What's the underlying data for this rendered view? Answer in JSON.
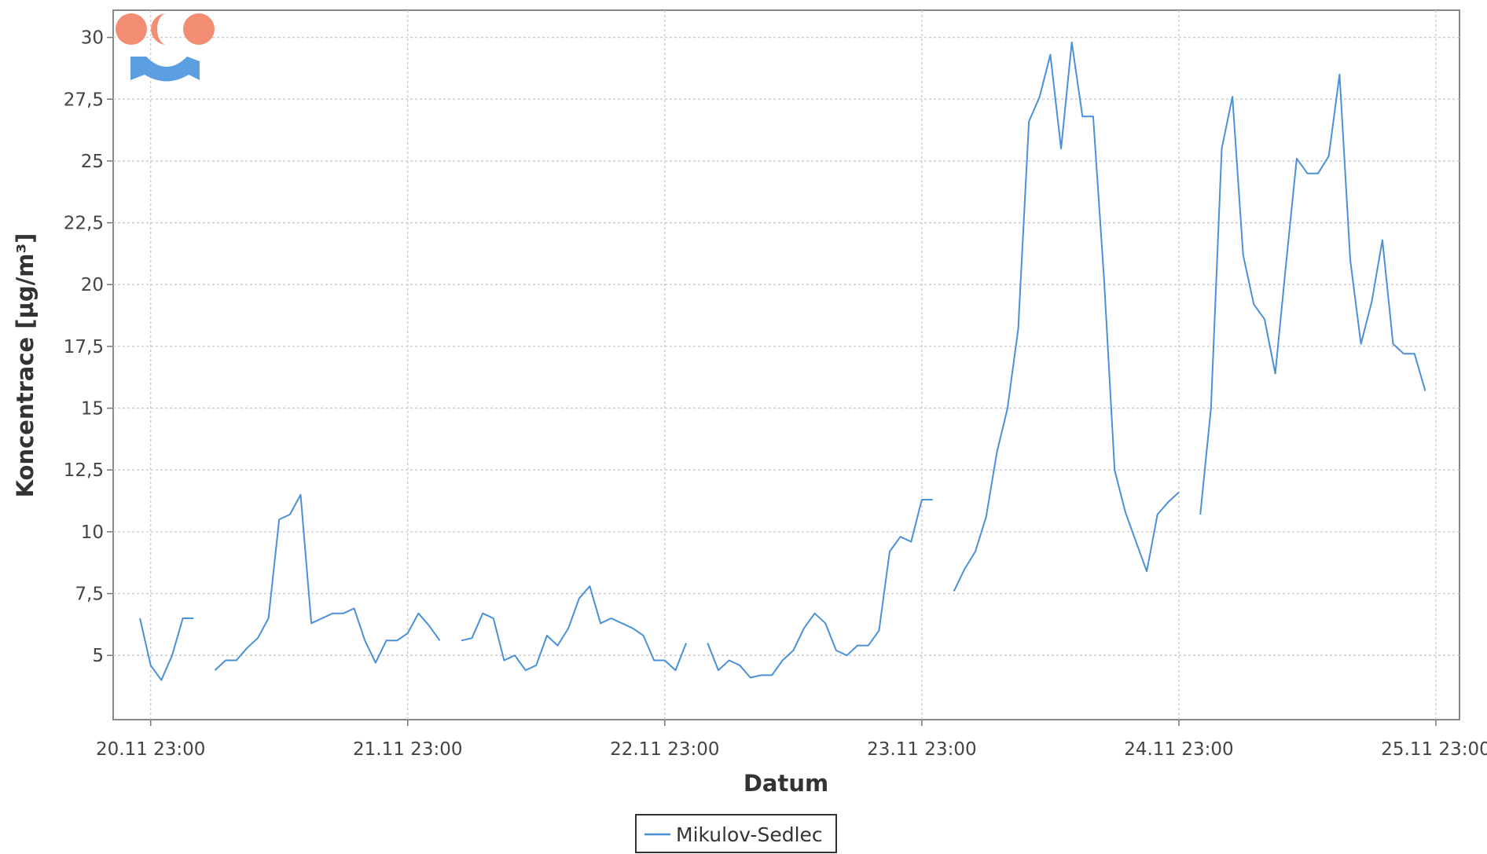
{
  "chart_data": {
    "type": "line",
    "title": "",
    "xlabel": "Datum",
    "ylabel": "Koncentrace [µg/m³]",
    "x_unit": "hours",
    "x_ticks": [
      {
        "label": "20.11 23:00",
        "h": 23
      },
      {
        "label": "21.11 23:00",
        "h": 47
      },
      {
        "label": "22.11 23:00",
        "h": 71
      },
      {
        "label": "23.11 23:00",
        "h": 95
      },
      {
        "label": "24.11 23:00",
        "h": 119
      },
      {
        "label": "25.11 23:00",
        "h": 143
      }
    ],
    "xlim": [
      19.5,
      145.2
    ],
    "ylim": [
      2.4,
      31.1
    ],
    "y_ticks": [
      {
        "label": "5",
        "v": 5
      },
      {
        "label": "7,5",
        "v": 7.5
      },
      {
        "label": "10",
        "v": 10
      },
      {
        "label": "12,5",
        "v": 12.5
      },
      {
        "label": "15",
        "v": 15
      },
      {
        "label": "17,5",
        "v": 17.5
      },
      {
        "label": "20",
        "v": 20
      },
      {
        "label": "22,5",
        "v": 22.5
      },
      {
        "label": "25",
        "v": 25
      },
      {
        "label": "27,5",
        "v": 27.5
      },
      {
        "label": "30",
        "v": 30
      }
    ],
    "grid": true,
    "legend_position": "bottom-center",
    "series": [
      {
        "name": "Mikulov-Sedlec",
        "color": "#4a90d9",
        "segments": [
          [
            [
              22,
              6.5
            ],
            [
              23,
              4.6
            ],
            [
              24,
              4.0
            ],
            [
              25,
              5.0
            ],
            [
              26,
              6.5
            ],
            [
              27,
              6.5
            ]
          ],
          [
            [
              29,
              4.4
            ],
            [
              30,
              4.8
            ],
            [
              31,
              4.8
            ],
            [
              32,
              5.3
            ],
            [
              33,
              5.7
            ],
            [
              34,
              6.5
            ],
            [
              35,
              10.5
            ],
            [
              36,
              10.7
            ],
            [
              37,
              11.5
            ],
            [
              38,
              6.3
            ],
            [
              39,
              6.5
            ],
            [
              40,
              6.7
            ],
            [
              41,
              6.7
            ],
            [
              42,
              6.9
            ],
            [
              43,
              5.6
            ],
            [
              44,
              4.7
            ],
            [
              45,
              5.6
            ],
            [
              46,
              5.6
            ],
            [
              47,
              5.9
            ],
            [
              48,
              6.7
            ],
            [
              49,
              6.2
            ],
            [
              50,
              5.6
            ]
          ],
          [
            [
              52,
              5.6
            ],
            [
              53,
              5.7
            ],
            [
              54,
              6.7
            ],
            [
              55,
              6.5
            ],
            [
              56,
              4.8
            ],
            [
              57,
              5.0
            ],
            [
              58,
              4.4
            ],
            [
              59,
              4.6
            ],
            [
              60,
              5.8
            ],
            [
              61,
              5.4
            ],
            [
              62,
              6.1
            ],
            [
              63,
              7.3
            ],
            [
              64,
              7.8
            ],
            [
              65,
              6.3
            ],
            [
              66,
              6.5
            ],
            [
              67,
              6.3
            ],
            [
              68,
              6.1
            ],
            [
              69,
              5.8
            ],
            [
              70,
              4.8
            ],
            [
              71,
              4.8
            ],
            [
              72,
              4.4
            ],
            [
              73,
              5.5
            ]
          ],
          [
            [
              75,
              5.5
            ],
            [
              76,
              4.4
            ],
            [
              77,
              4.8
            ],
            [
              78,
              4.6
            ],
            [
              79,
              4.1
            ],
            [
              80,
              4.2
            ],
            [
              81,
              4.2
            ],
            [
              82,
              4.8
            ],
            [
              83,
              5.2
            ],
            [
              84,
              6.1
            ],
            [
              85,
              6.7
            ],
            [
              86,
              6.3
            ],
            [
              87,
              5.2
            ],
            [
              88,
              5.0
            ],
            [
              89,
              5.4
            ],
            [
              90,
              5.4
            ],
            [
              91,
              6.0
            ],
            [
              92,
              9.2
            ],
            [
              93,
              9.8
            ],
            [
              94,
              9.6
            ],
            [
              95,
              11.3
            ],
            [
              96,
              11.3
            ]
          ],
          [
            [
              98,
              7.6
            ],
            [
              99,
              8.5
            ],
            [
              100,
              9.2
            ],
            [
              101,
              10.6
            ],
            [
              102,
              13.2
            ],
            [
              103,
              15.0
            ],
            [
              104,
              18.2
            ],
            [
              105,
              26.6
            ],
            [
              106,
              27.6
            ],
            [
              107,
              29.3
            ],
            [
              108,
              25.5
            ],
            [
              109,
              29.8
            ],
            [
              110,
              26.8
            ],
            [
              111,
              26.8
            ],
            [
              112,
              20.3
            ],
            [
              113,
              12.5
            ],
            [
              114,
              10.8
            ],
            [
              115,
              9.6
            ],
            [
              116,
              8.4
            ],
            [
              117,
              10.7
            ],
            [
              118,
              11.2
            ],
            [
              119,
              11.6
            ]
          ],
          [
            [
              121,
              10.7
            ],
            [
              122,
              15.0
            ],
            [
              123,
              25.5
            ],
            [
              124,
              27.6
            ],
            [
              125,
              21.2
            ],
            [
              126,
              19.2
            ],
            [
              127,
              18.6
            ],
            [
              128,
              16.4
            ],
            [
              129,
              20.8
            ],
            [
              130,
              25.1
            ],
            [
              131,
              24.5
            ],
            [
              132,
              24.5
            ],
            [
              133,
              25.2
            ],
            [
              134,
              28.5
            ],
            [
              135,
              21.0
            ],
            [
              136,
              17.6
            ],
            [
              137,
              19.3
            ],
            [
              138,
              21.8
            ],
            [
              139,
              17.6
            ],
            [
              140,
              17.2
            ],
            [
              141,
              17.2
            ],
            [
              142,
              15.7
            ]
          ]
        ]
      }
    ]
  }
}
